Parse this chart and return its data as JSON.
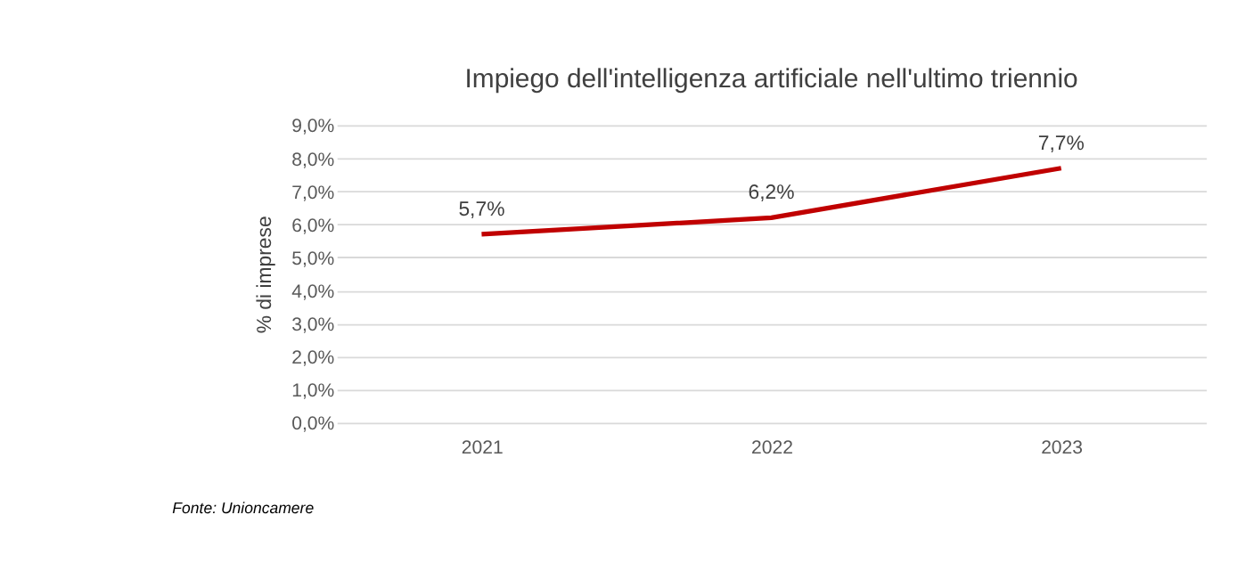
{
  "chart_data": {
    "type": "line",
    "title": "Impiego dell'intelligenza artificiale nell'ultimo triennio",
    "ylabel": "% di imprese",
    "categories": [
      "2021",
      "2022",
      "2023"
    ],
    "series": [
      {
        "color": "#c00000",
        "values": [
          5.7,
          6.2,
          7.7
        ],
        "value_labels": [
          "5,7%",
          "6,2%",
          "7,7%"
        ]
      }
    ],
    "ylim": [
      0,
      9
    ],
    "yticks": [
      {
        "value": 0,
        "label": "0,0%"
      },
      {
        "value": 1,
        "label": "1,0%"
      },
      {
        "value": 2,
        "label": "2,0%"
      },
      {
        "value": 3,
        "label": "3,0%"
      },
      {
        "value": 4,
        "label": "4,0%"
      },
      {
        "value": 5,
        "label": "5,0%"
      },
      {
        "value": 6,
        "label": "6,0%"
      },
      {
        "value": 7,
        "label": "7,0%"
      },
      {
        "value": 8,
        "label": "8,0%"
      },
      {
        "value": 9,
        "label": "9,0%"
      }
    ],
    "grid": "y",
    "legend": false,
    "marker": "none",
    "line_style": "solid",
    "annotations": [
      "Fonte: Unioncamere"
    ]
  }
}
